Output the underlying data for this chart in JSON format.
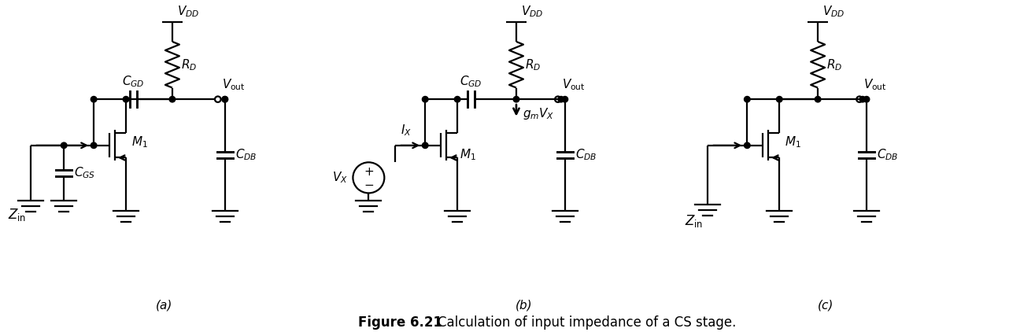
{
  "figure_title": "Figure 6.21",
  "figure_caption": "    Calculation of input impedance of a CS stage.",
  "labels": {
    "a": "(a)",
    "b": "(b)",
    "c": "(c)"
  },
  "background_color": "#ffffff",
  "line_color": "#000000",
  "font_size_component": 11,
  "font_size_caption": 12
}
